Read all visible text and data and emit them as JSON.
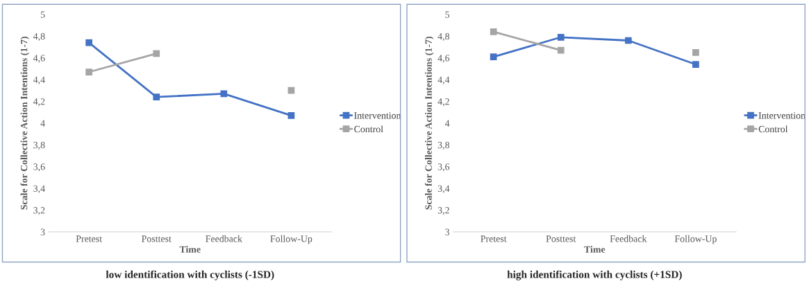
{
  "chart_data": [
    {
      "type": "line",
      "title": "low identification with cyclists (-1SD)",
      "xlabel": "Time",
      "ylabel": "Scale for Collective Action Intentions (1-7)",
      "categories": [
        "Pretest",
        "Posttest",
        "Feedback",
        "Follow-Up"
      ],
      "series": [
        {
          "name": "Intervention",
          "color": "#4472c4",
          "values": [
            4.74,
            4.24,
            4.27,
            4.07
          ]
        },
        {
          "name": "Control",
          "color": "#a5a5a5",
          "values": [
            4.47,
            4.64,
            null,
            4.3
          ]
        }
      ],
      "ylim": [
        3,
        5
      ],
      "yticks": [
        3,
        {
          "value": 3.2,
          "label": "3,2"
        },
        {
          "value": 3.4,
          "label": "3,4"
        },
        {
          "value": 3.6,
          "label": "3,6"
        },
        {
          "value": 3.8,
          "label": "3,8"
        },
        4,
        {
          "value": 4.2,
          "label": "4,2"
        },
        {
          "value": 4.4,
          "label": "4,4"
        },
        {
          "value": 4.6,
          "label": "4,6"
        },
        {
          "value": 4.8,
          "label": "4,8"
        },
        5
      ],
      "marker": "square",
      "legend": "right"
    },
    {
      "type": "line",
      "title": "high identification with cyclists (+1SD)",
      "xlabel": "Time",
      "ylabel": "Scale for Collective Action Intentions (1-7)",
      "categories": [
        "Pretest",
        "Posttest",
        "Feedback",
        "Follow-Up"
      ],
      "series": [
        {
          "name": "Intervention",
          "color": "#4472c4",
          "values": [
            4.61,
            4.79,
            4.76,
            4.54
          ]
        },
        {
          "name": "Control",
          "color": "#a5a5a5",
          "values": [
            4.84,
            4.67,
            null,
            4.65
          ]
        }
      ],
      "ylim": [
        3,
        5
      ],
      "yticks": [
        3,
        {
          "value": 3.2,
          "label": "3,2"
        },
        {
          "value": 3.4,
          "label": "3,4"
        },
        {
          "value": 3.6,
          "label": "3,6"
        },
        {
          "value": 3.8,
          "label": "3,8"
        },
        4,
        {
          "value": 4.2,
          "label": "4,2"
        },
        {
          "value": 4.4,
          "label": "4,4"
        },
        {
          "value": 4.6,
          "label": "4,6"
        },
        {
          "value": 4.8,
          "label": "4,8"
        },
        5
      ],
      "marker": "square",
      "legend": "right"
    }
  ]
}
